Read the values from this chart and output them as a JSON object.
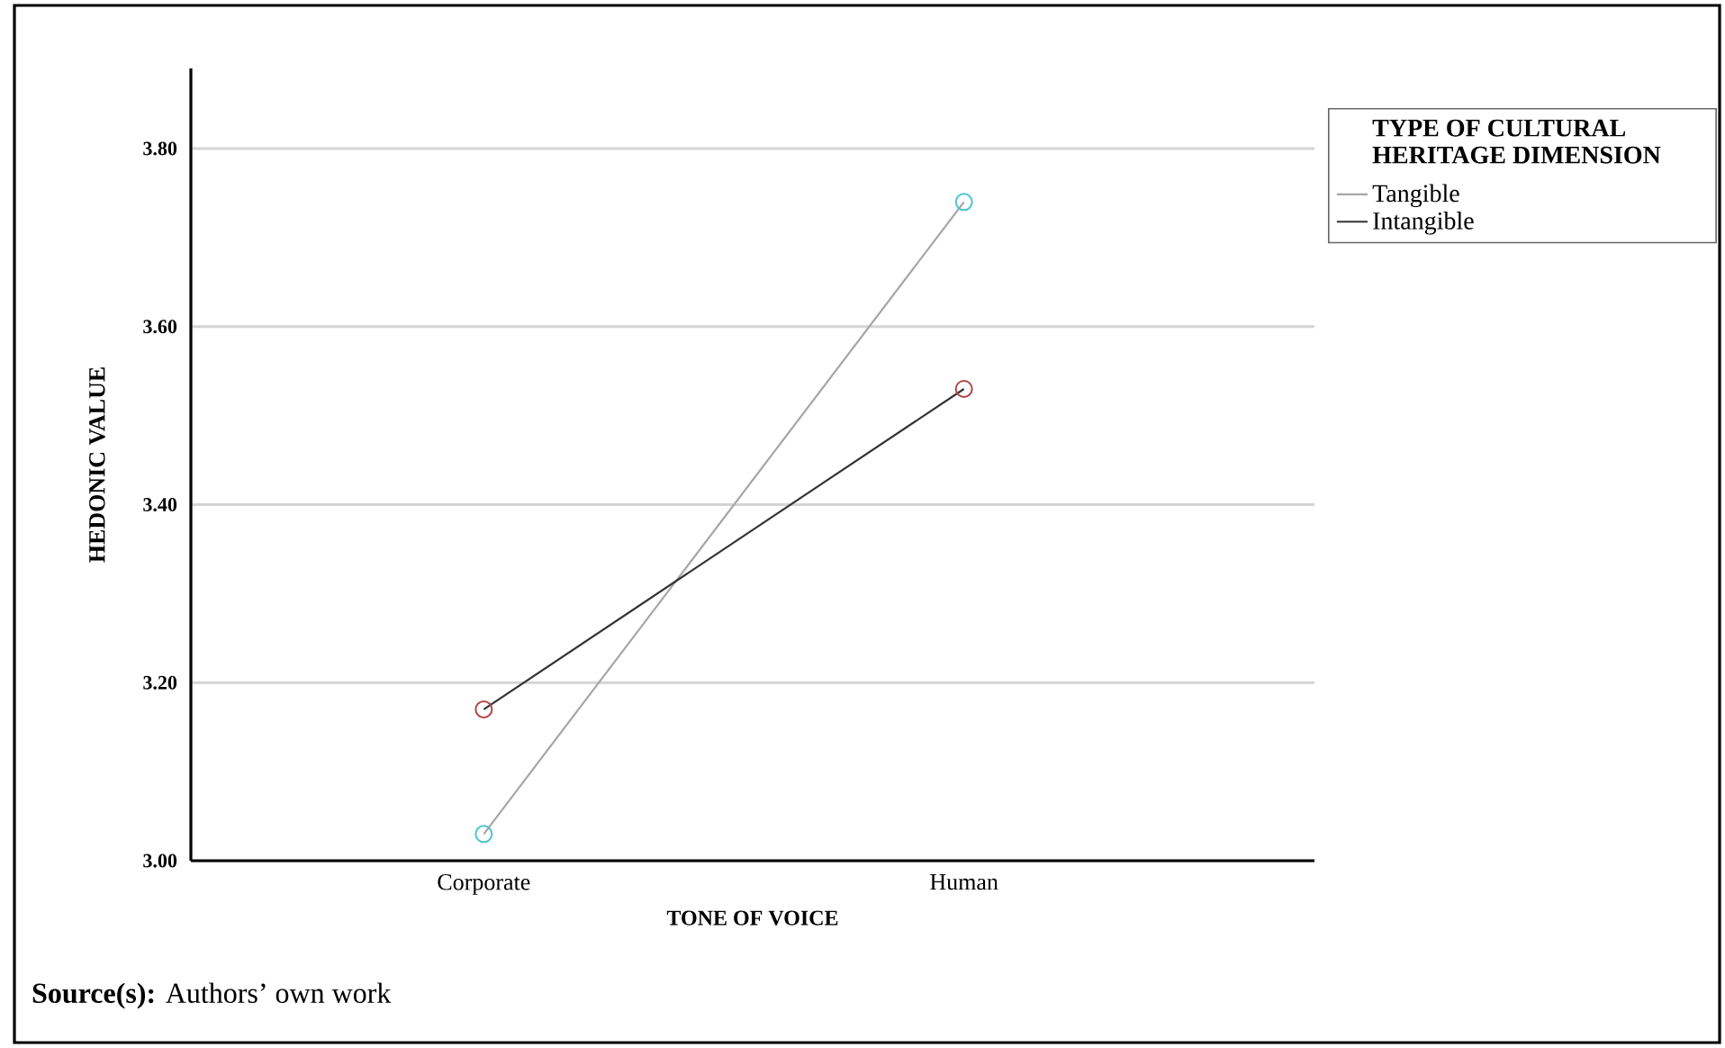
{
  "chart_data": {
    "type": "line",
    "xlabel": "TONE OF VOICE",
    "ylabel": "HEDONIC VALUE",
    "legend_title": "TYPE OF CULTURAL HERITAGE DIMENSION",
    "categories": [
      "Corporate",
      "Human"
    ],
    "series": [
      {
        "name": "Tangible",
        "color": "#a6a6a6",
        "colors": [
          "#4fc4d4",
          "#4fc4d4"
        ],
        "values": [
          3.03,
          3.74
        ]
      },
      {
        "name": "Intangible",
        "color": "#333333",
        "colors": [
          "#b0474a",
          "#b0474a"
        ],
        "values": [
          3.17,
          3.53
        ]
      }
    ],
    "ylim": [
      3.0,
      3.89
    ],
    "yticks": [
      {
        "value": 3.0,
        "label": "3.00"
      },
      {
        "value": 3.2,
        "label": "3.20"
      },
      {
        "value": 3.4,
        "label": "3.40"
      },
      {
        "value": 3.6,
        "label": "3.60"
      },
      {
        "value": 3.8,
        "label": "3.80"
      }
    ],
    "grid": "y",
    "legend": "top right",
    "marker": "circle",
    "line_style": "solid",
    "annotations": [
      "**Source(s):** Authors’ own work"
    ]
  }
}
